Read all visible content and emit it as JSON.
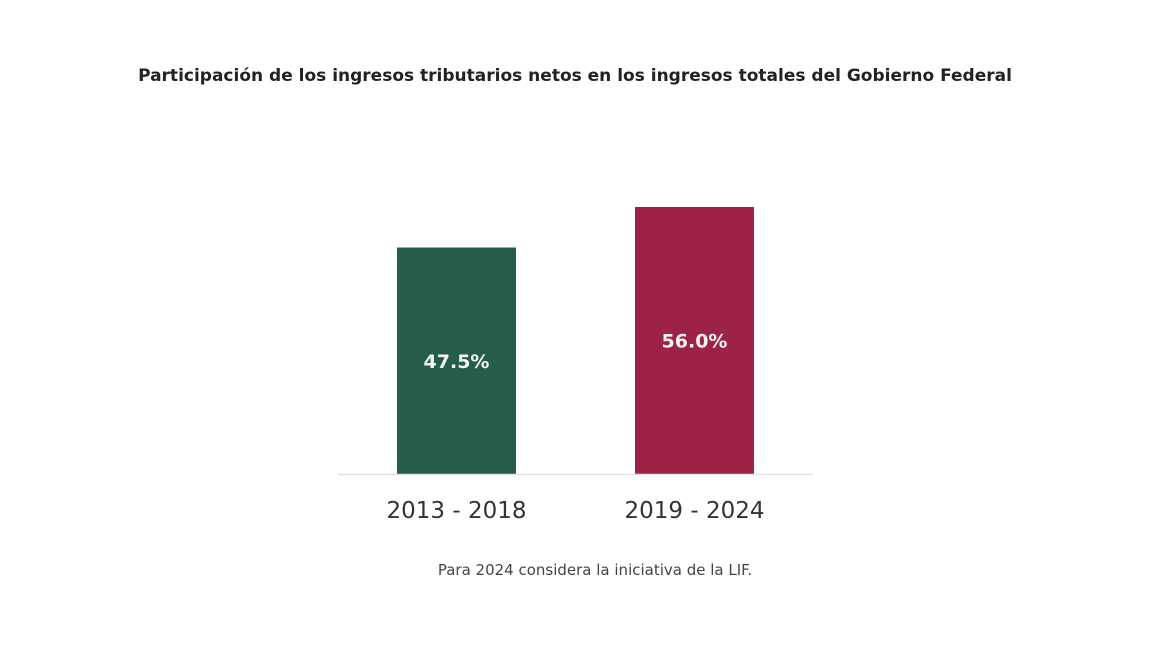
{
  "chart_data": {
    "type": "bar",
    "title": "Participación de los ingresos tributarios netos en los ingresos totales del Gobierno Federal",
    "categories": [
      "2013 - 2018",
      "2019 - 2024"
    ],
    "values": [
      47.5,
      56.0
    ],
    "data_labels": [
      "47.5%",
      "56.0%"
    ],
    "colors": [
      "#265c4b",
      "#9e2246"
    ],
    "ylim": [
      0,
      56
    ],
    "grid": false,
    "y_axis_shown": false,
    "footnote": "Para 2024 considera la iniciativa de la LIF."
  }
}
